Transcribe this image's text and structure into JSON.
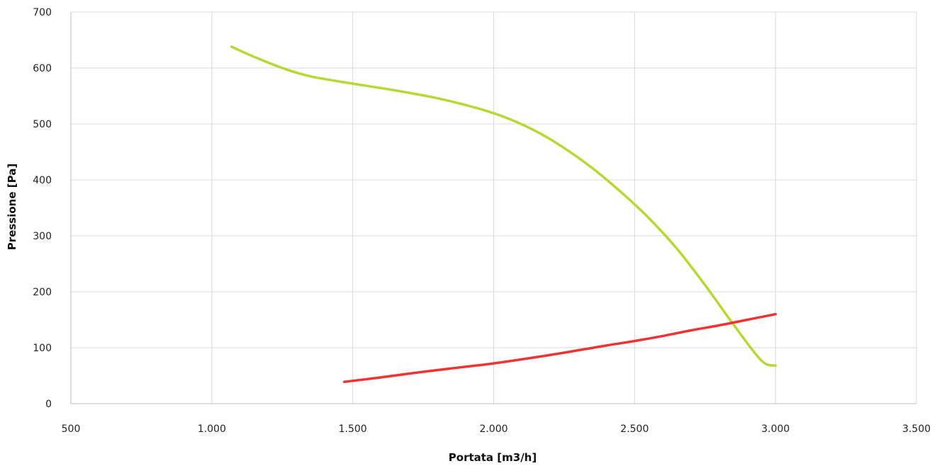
{
  "chart_data": {
    "type": "line",
    "title": "",
    "xlabel": "Portata [m3/h]",
    "ylabel": "Pressione [Pa]",
    "xlim": [
      500,
      3500
    ],
    "ylim": [
      0,
      700
    ],
    "x_ticks": [
      500,
      1000,
      1500,
      2000,
      2500,
      3000,
      3500
    ],
    "x_tick_labels": [
      "500",
      "1.000",
      "1.500",
      "2.000",
      "2.500",
      "3.000",
      "3.500"
    ],
    "y_ticks": [
      0,
      100,
      200,
      300,
      400,
      500,
      600,
      700
    ],
    "y_tick_labels": [
      "0",
      "100",
      "200",
      "300",
      "400",
      "500",
      "600",
      "700"
    ],
    "grid": true,
    "legend": "none",
    "series": [
      {
        "color": "#b5d832",
        "points": [
          [
            1070,
            638
          ],
          [
            1150,
            620
          ],
          [
            1250,
            600
          ],
          [
            1350,
            585
          ],
          [
            1500,
            572
          ],
          [
            1650,
            560
          ],
          [
            1800,
            546
          ],
          [
            1950,
            527
          ],
          [
            2050,
            510
          ],
          [
            2150,
            487
          ],
          [
            2250,
            457
          ],
          [
            2350,
            421
          ],
          [
            2450,
            379
          ],
          [
            2550,
            332
          ],
          [
            2650,
            277
          ],
          [
            2750,
            212
          ],
          [
            2850,
            142
          ],
          [
            2950,
            77
          ],
          [
            3000,
            68
          ]
        ]
      },
      {
        "color": "#f03232",
        "points": [
          [
            1470,
            39
          ],
          [
            1600,
            47
          ],
          [
            1750,
            57
          ],
          [
            1900,
            66
          ],
          [
            2000,
            72
          ],
          [
            2200,
            87
          ],
          [
            2400,
            104
          ],
          [
            2500,
            112
          ],
          [
            2600,
            121
          ],
          [
            2700,
            131
          ],
          [
            2800,
            140
          ],
          [
            2900,
            150
          ],
          [
            3000,
            160
          ]
        ]
      }
    ]
  }
}
